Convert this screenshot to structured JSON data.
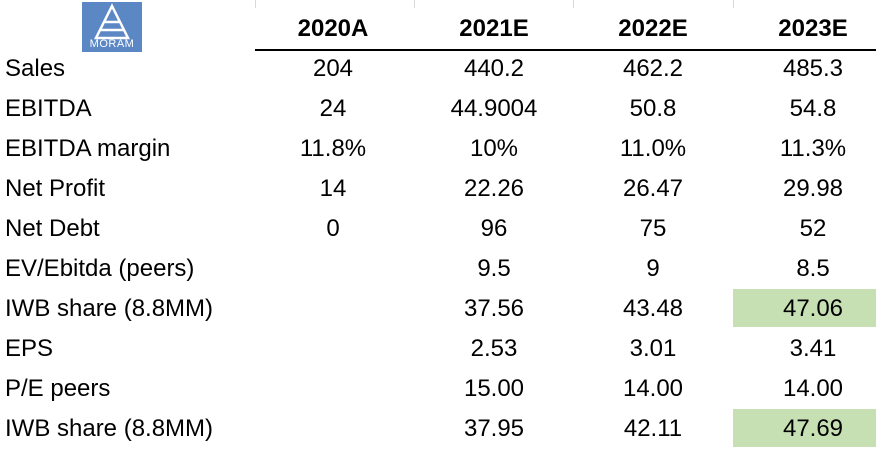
{
  "logo": {
    "text": "MORAM",
    "color": "#5b87c5",
    "icon": "pyramid-icon"
  },
  "header": {
    "columns": [
      "2020A",
      "2021E",
      "2022E",
      "2023E"
    ]
  },
  "rows": [
    {
      "label": "Sales",
      "values": [
        "204",
        "440.2",
        "462.2",
        "485.3"
      ]
    },
    {
      "label": "EBITDA",
      "values": [
        "24",
        "44.9004",
        "50.8",
        "54.8"
      ]
    },
    {
      "label": "EBITDA margin",
      "values": [
        "11.8%",
        "10%",
        "11.0%",
        "11.3%"
      ]
    },
    {
      "label": "Net Profit",
      "values": [
        "14",
        "22.26",
        "26.47",
        "29.98"
      ]
    },
    {
      "label": "Net Debt",
      "values": [
        "0",
        "96",
        "75",
        "52"
      ]
    },
    {
      "label": "EV/Ebitda (peers)",
      "values": [
        "",
        "9.5",
        "9",
        "8.5"
      ]
    },
    {
      "label": "IWB share (8.8MM)",
      "values": [
        "",
        "37.56",
        "43.48",
        "47.06"
      ]
    },
    {
      "label": "EPS",
      "values": [
        "",
        "2.53",
        "3.01",
        "3.41"
      ]
    },
    {
      "label": "P/E peers",
      "values": [
        "",
        "15.00",
        "14.00",
        "14.00"
      ]
    },
    {
      "label": "IWB share (8.8MM)",
      "values": [
        "",
        "37.95",
        "42.11",
        "47.69"
      ]
    }
  ],
  "highlight_color": "#c6e0b4"
}
